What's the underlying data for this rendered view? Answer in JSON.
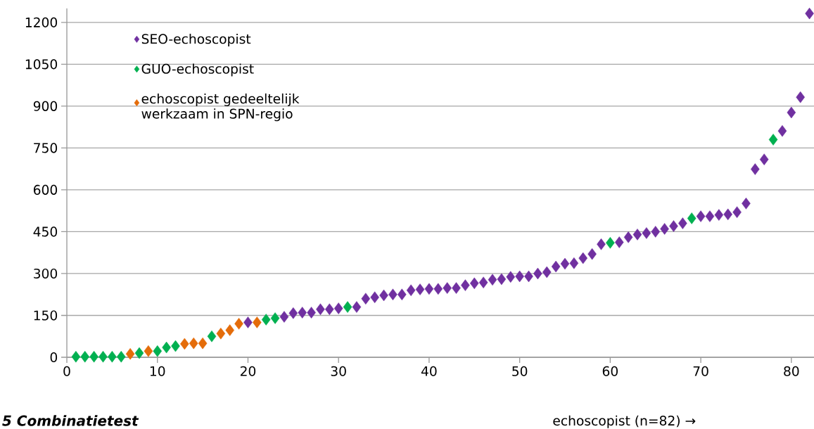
{
  "chart_data": {
    "type": "scatter",
    "xlabel": "echoscopist (n=82) →",
    "annotations": [
      "5 Combinatietest"
    ],
    "series": [
      {
        "name": "SEO-echoscopist",
        "color": "#7030a0",
        "x": [
          20,
          24,
          25,
          26,
          27,
          28,
          29,
          30,
          32,
          33,
          34,
          35,
          36,
          37,
          38,
          39,
          40,
          41,
          42,
          43,
          44,
          45,
          46,
          47,
          48,
          49,
          50,
          51,
          52,
          53,
          54,
          55,
          56,
          57,
          58,
          59,
          61,
          62,
          63,
          64,
          65,
          66,
          67,
          68,
          70,
          71,
          72,
          73,
          74,
          75,
          76,
          77,
          79,
          80,
          81,
          82
        ],
        "values": [
          125,
          145,
          158,
          160,
          160,
          172,
          172,
          175,
          180,
          210,
          215,
          222,
          225,
          225,
          240,
          243,
          245,
          245,
          248,
          248,
          258,
          265,
          268,
          278,
          280,
          288,
          290,
          290,
          300,
          305,
          325,
          335,
          337,
          355,
          370,
          405,
          412,
          430,
          440,
          445,
          450,
          460,
          470,
          480,
          505,
          505,
          510,
          512,
          520,
          551,
          674,
          709,
          811,
          877,
          932,
          1232
        ]
      },
      {
        "name": "GUO-echoscopist",
        "color": "#00b050",
        "x": [
          1,
          2,
          3,
          4,
          5,
          6,
          8,
          10,
          11,
          12,
          16,
          22,
          23,
          31,
          60,
          69,
          78
        ],
        "values": [
          2,
          2,
          2,
          2,
          2,
          2,
          15,
          22,
          35,
          40,
          75,
          135,
          140,
          180,
          410,
          498,
          780
        ]
      },
      {
        "name": "echoscopist gedeeltelijk werkzaam in SPN-regio",
        "color": "#e46c0a",
        "x": [
          7,
          9,
          13,
          14,
          15,
          17,
          18,
          19,
          21
        ],
        "values": [
          12,
          22,
          48,
          50,
          50,
          85,
          97,
          120,
          125
        ]
      }
    ],
    "xlim": [
      0,
      82.5
    ],
    "ylim": [
      0,
      1250
    ],
    "xticks": [
      0,
      10,
      20,
      30,
      40,
      50,
      60,
      70,
      80
    ],
    "yticks": [
      0,
      150,
      300,
      450,
      600,
      750,
      900,
      1050,
      1200
    ],
    "grid": "y",
    "legend": "top left",
    "marker": "diamond"
  }
}
